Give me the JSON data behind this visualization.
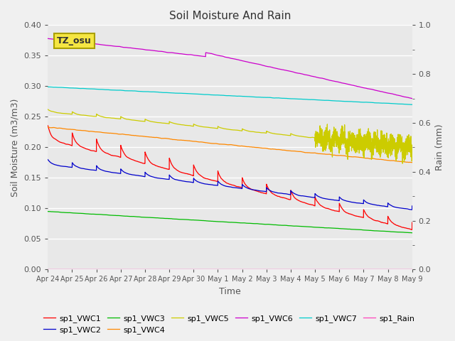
{
  "title": "Soil Moisture And Rain",
  "xlabel": "Time",
  "ylabel_left": "Soil Moisture (m3/m3)",
  "ylabel_right": "Rain (mm)",
  "ylim_left": [
    0.0,
    0.4
  ],
  "ylim_right": [
    0.0,
    1.0
  ],
  "bg_color": "#e8e8e8",
  "fig_color": "#f0f0f0",
  "annotation_text": "TZ_osu",
  "annotation_bg": "#f5e642",
  "annotation_border": "#aaa000",
  "x_tick_labels": [
    "Apr 24",
    "Apr 25",
    "Apr 26",
    "Apr 27",
    "Apr 28",
    "Apr 29",
    "Apr 30",
    "May 1",
    "May 2",
    "May 3",
    "May 4",
    "May 5",
    "May 6",
    "May 7",
    "May 8",
    "May 9"
  ],
  "series": {
    "sp1_VWC1": {
      "color": "#ff0000"
    },
    "sp1_VWC2": {
      "color": "#0000cc"
    },
    "sp1_VWC3": {
      "color": "#00bb00"
    },
    "sp1_VWC4": {
      "color": "#ff8800"
    },
    "sp1_VWC5": {
      "color": "#cccc00"
    },
    "sp1_VWC6": {
      "color": "#cc00cc"
    },
    "sp1_VWC7": {
      "color": "#00cccc"
    },
    "sp1_Rain": {
      "color": "#ff44bb"
    }
  },
  "legend_order": [
    "sp1_VWC1",
    "sp1_VWC2",
    "sp1_VWC3",
    "sp1_VWC4",
    "sp1_VWC5",
    "sp1_VWC6",
    "sp1_VWC7",
    "sp1_Rain"
  ]
}
